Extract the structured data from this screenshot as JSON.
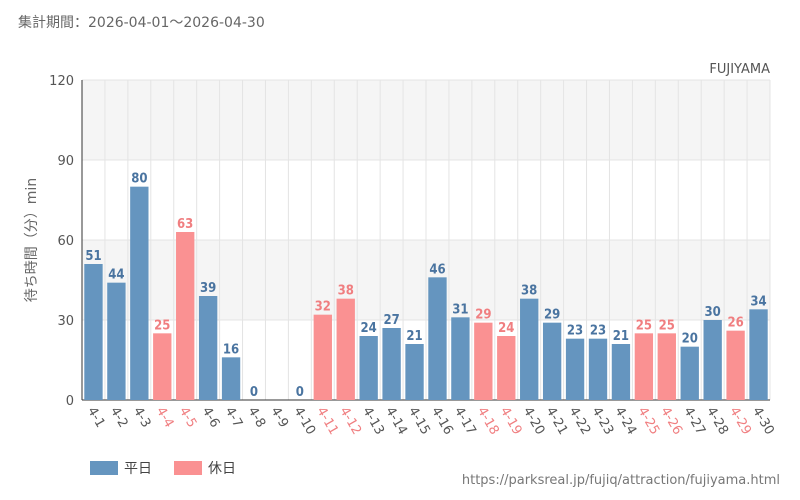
{
  "header": {
    "period_label": "集計期間：2026-04-01～2026-04-30",
    "attraction": "FUJIYAMA"
  },
  "footer": {
    "source_url": "https://parksreal.jp/fujiq/attraction/fujiyama.html"
  },
  "legend": {
    "weekday_label": "平日",
    "holiday_label": "休日"
  },
  "colors": {
    "weekday": "#6595bf",
    "holiday": "#fa9192",
    "weekday_text": "#4a74a0",
    "holiday_text": "#f07e80",
    "tick_text": "#555555",
    "band": "#f5f5f5",
    "grid": "#e4e4e4"
  },
  "chart_data": {
    "type": "bar",
    "ylabel": "待ち時間（分）min",
    "ylim": [
      0,
      120
    ],
    "yticks": [
      0,
      30,
      60,
      90,
      120
    ],
    "grid": true,
    "legend_position": "bottom-left",
    "categories": [
      "4-1",
      "4-2",
      "4-3",
      "4-4",
      "4-5",
      "4-6",
      "4-7",
      "4-8",
      "4-9",
      "4-10",
      "4-11",
      "4-12",
      "4-13",
      "4-14",
      "4-15",
      "4-16",
      "4-17",
      "4-18",
      "4-19",
      "4-20",
      "4-21",
      "4-22",
      "4-23",
      "4-24",
      "4-25",
      "4-26",
      "4-27",
      "4-28",
      "4-29",
      "4-30"
    ],
    "values": [
      51,
      44,
      80,
      25,
      63,
      39,
      16,
      0,
      null,
      0,
      32,
      38,
      24,
      27,
      21,
      46,
      31,
      29,
      24,
      38,
      29,
      23,
      23,
      21,
      25,
      25,
      20,
      30,
      26,
      34
    ],
    "day_type": [
      "weekday",
      "weekday",
      "weekday",
      "holiday",
      "holiday",
      "weekday",
      "weekday",
      "weekday",
      "weekday",
      "weekday",
      "holiday",
      "holiday",
      "weekday",
      "weekday",
      "weekday",
      "weekday",
      "weekday",
      "holiday",
      "holiday",
      "weekday",
      "weekday",
      "weekday",
      "weekday",
      "weekday",
      "holiday",
      "holiday",
      "weekday",
      "weekday",
      "holiday",
      "weekday"
    ]
  }
}
